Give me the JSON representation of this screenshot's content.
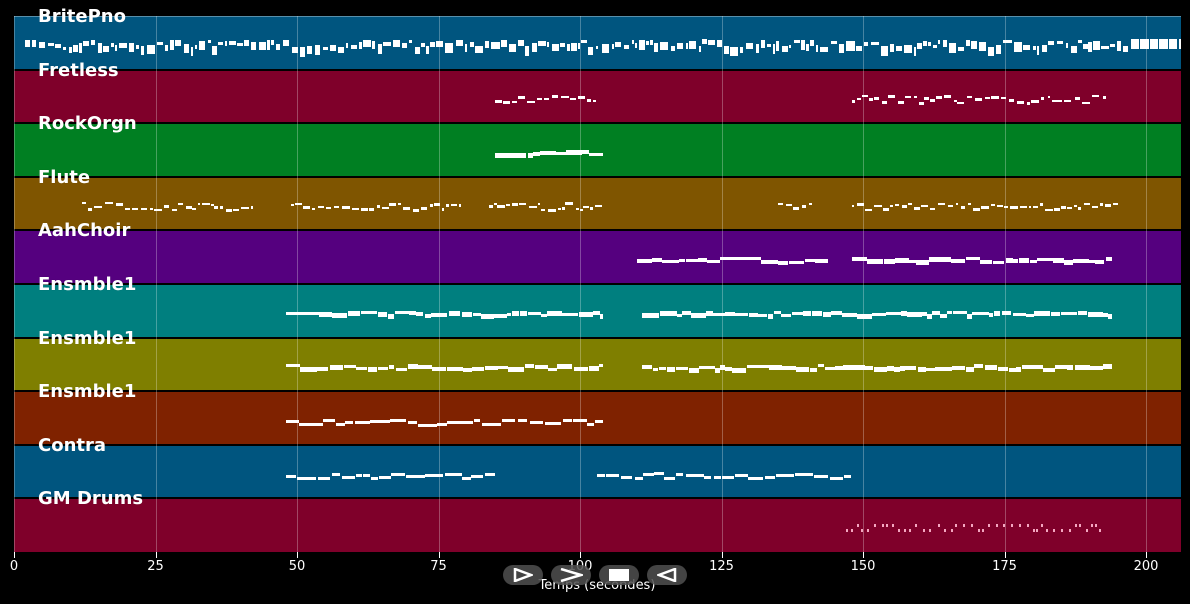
{
  "chart_data": {
    "type": "piano-roll",
    "title": "",
    "xlabel": "Temps (secondes)",
    "ylabel": "",
    "xlim": [
      0,
      206
    ],
    "xticks": [
      0,
      25,
      50,
      75,
      100,
      125,
      150,
      175,
      200
    ],
    "grid": true,
    "tracks": [
      {
        "name": "BritePno",
        "color": "#00557f",
        "segments": [
          [
            2,
            206
          ]
        ],
        "density": "dense"
      },
      {
        "name": "Fretless",
        "color": "#7f002a",
        "segments": [
          [
            85,
            103
          ],
          [
            148,
            193
          ]
        ],
        "density": "sparse"
      },
      {
        "name": "RockOrgn",
        "color": "#007f22",
        "segments": [
          [
            85,
            104
          ]
        ],
        "density": "block"
      },
      {
        "name": "Flute",
        "color": "#7f5500",
        "segments": [
          [
            12,
            42
          ],
          [
            49,
            79
          ],
          [
            84,
            104
          ],
          [
            135,
            141
          ],
          [
            148,
            195
          ]
        ],
        "density": "sparse"
      },
      {
        "name": "AahChoir",
        "color": "#55007f",
        "segments": [
          [
            110,
            144
          ],
          [
            148,
            194
          ]
        ],
        "density": "block"
      },
      {
        "name": "Ensmble1",
        "color": "#007f7f",
        "segments": [
          [
            48,
            104
          ],
          [
            111,
            194
          ]
        ],
        "density": "block"
      },
      {
        "name": "Ensmble1",
        "color": "#7f7f00",
        "segments": [
          [
            48,
            104
          ],
          [
            111,
            194
          ]
        ],
        "density": "block"
      },
      {
        "name": "Ensmble1",
        "color": "#7f2200",
        "segments": [
          [
            48,
            104
          ]
        ],
        "density": "thin"
      },
      {
        "name": "Contra",
        "color": "#00557f",
        "segments": [
          [
            48,
            85
          ],
          [
            103,
            148
          ]
        ],
        "density": "thin"
      },
      {
        "name": "GM Drums",
        "color": "#7f002a",
        "segments": [
          [
            147,
            192
          ]
        ],
        "density": "drums"
      }
    ]
  },
  "axis": {
    "xlabel": "Temps (secondes)",
    "ticks": [
      "0",
      "25",
      "50",
      "75",
      "100",
      "125",
      "150",
      "175",
      "200"
    ]
  },
  "tracks": {
    "t0": "BritePno",
    "t1": "Fretless",
    "t2": "RockOrgn",
    "t3": "Flute",
    "t4": "AahChoir",
    "t5": "Ensmble1",
    "t6": "Ensmble1",
    "t7": "Ensmble1",
    "t8": "Contra",
    "t9": "GM Drums"
  },
  "controls": [
    {
      "name": "play",
      "icon": "play-icon"
    },
    {
      "name": "forward",
      "icon": "forward-icon"
    },
    {
      "name": "stop",
      "icon": "stop-icon"
    },
    {
      "name": "back",
      "icon": "back-icon"
    }
  ]
}
